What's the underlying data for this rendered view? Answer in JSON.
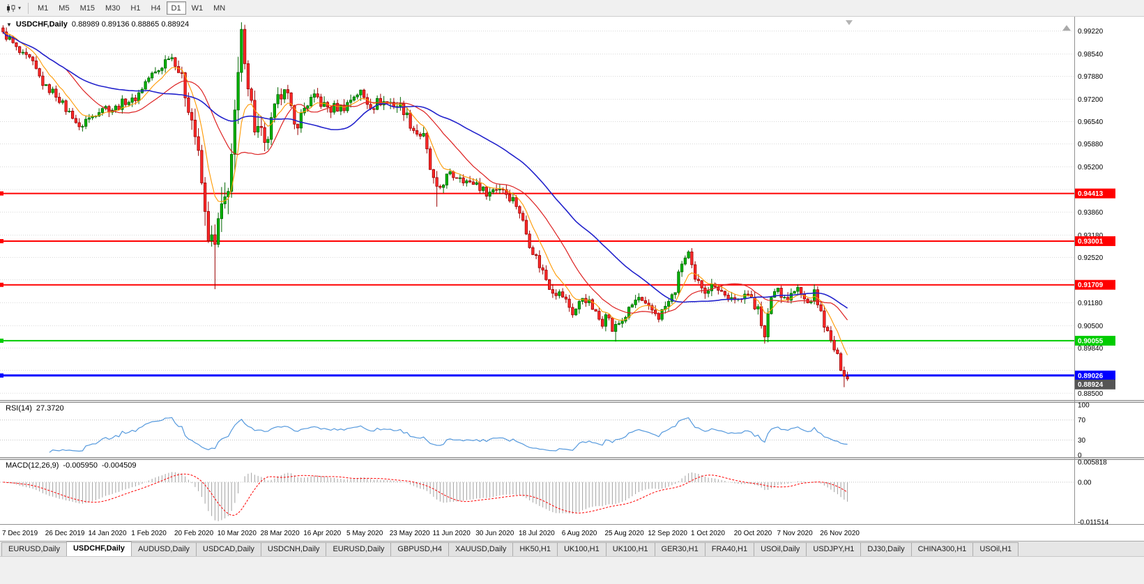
{
  "toolbar": {
    "timeframes": [
      "M1",
      "M5",
      "M15",
      "M30",
      "H1",
      "H4",
      "D1",
      "W1",
      "MN"
    ],
    "active_timeframe": "D1"
  },
  "chart": {
    "title_symbol": "USDCHF,Daily",
    "title_ohlc": "0.88989 0.89136 0.88865 0.88924"
  },
  "tabs": {
    "active_index": 1,
    "items": [
      "EURUSD,Daily",
      "USDCHF,Daily",
      "AUDUSD,Daily",
      "USDCAD,Daily",
      "USDCNH,Daily",
      "EURUSD,Daily",
      "GBPUSD,H4",
      "XAUUSD,Daily",
      "HK50,H1",
      "UK100,H1",
      "UK100,H1",
      "GER30,H1",
      "FRA40,H1",
      "USOil,Daily",
      "USDJPY,H1",
      "DJ30,Daily",
      "CHINA300,H1",
      "USOil,H1"
    ],
    "active_label": "USDCHF,Daily"
  },
  "chart_data": {
    "type": "candlestick",
    "symbol": "USDCHF",
    "timeframe": "Daily",
    "bars_total": 256,
    "y_range": [
      0.883,
      0.9956
    ],
    "y_grid_levels": [
      0.9922,
      0.9854,
      0.9788,
      0.972,
      0.9654,
      0.9588,
      0.952,
      0.9453,
      0.9386,
      0.9318,
      0.9252,
      0.9186,
      0.9118,
      0.905,
      0.8984,
      0.8918,
      0.885
    ],
    "y_grid_hidden_labels": [
      0.9453,
      0.9186,
      0.8918
    ],
    "x_tick_labels": [
      "7 Dec 2019",
      "26 Dec 2019",
      "14 Jan 2020",
      "1 Feb 2020",
      "20 Feb 2020",
      "10 Mar 2020",
      "28 Mar 2020",
      "16 Apr 2020",
      "5 May 2020",
      "23 May 2020",
      "11 Jun 2020",
      "30 Jun 2020",
      "18 Jul 2020",
      "6 Aug 2020",
      "25 Aug 2020",
      "12 Sep 2020",
      "1 Oct 2020",
      "20 Oct 2020",
      "7 Nov 2020",
      "26 Nov 2020"
    ],
    "x_tick_interval_bars": 13,
    "last_bar": {
      "open": 0.88989,
      "high": 0.89136,
      "low": 0.88865,
      "close": 0.88924
    },
    "close_keyframes": [
      [
        0,
        0.9912
      ],
      [
        4,
        0.9872
      ],
      [
        8,
        0.9833
      ],
      [
        13,
        0.9758
      ],
      [
        18,
        0.9708
      ],
      [
        21,
        0.9672
      ],
      [
        23,
        0.9625
      ],
      [
        25,
        0.9663
      ],
      [
        30,
        0.9692
      ],
      [
        35,
        0.97
      ],
      [
        39,
        0.9718
      ],
      [
        45,
        0.979
      ],
      [
        50,
        0.9845
      ],
      [
        52,
        0.983
      ],
      [
        54,
        0.979
      ],
      [
        56,
        0.97
      ],
      [
        58,
        0.96
      ],
      [
        60,
        0.948
      ],
      [
        61,
        0.939
      ],
      [
        63,
        0.929
      ],
      [
        64,
        0.926
      ],
      [
        65,
        0.933
      ],
      [
        66,
        0.937
      ],
      [
        67,
        0.943
      ],
      [
        68,
        0.95
      ],
      [
        69,
        0.957
      ],
      [
        70,
        0.965
      ],
      [
        71,
        0.976
      ],
      [
        72,
        0.9872
      ],
      [
        73,
        0.986
      ],
      [
        74,
        0.979
      ],
      [
        76,
        0.965
      ],
      [
        78,
        0.96
      ],
      [
        79,
        0.956
      ],
      [
        82,
        0.97
      ],
      [
        85,
        0.9758
      ],
      [
        88,
        0.9645
      ],
      [
        91,
        0.9692
      ],
      [
        95,
        0.9728
      ],
      [
        99,
        0.9683
      ],
      [
        104,
        0.9712
      ],
      [
        108,
        0.9738
      ],
      [
        112,
        0.97
      ],
      [
        117,
        0.9718
      ],
      [
        121,
        0.9682
      ],
      [
        125,
        0.9625
      ],
      [
        127,
        0.96
      ],
      [
        129,
        0.9512
      ],
      [
        131,
        0.9455
      ],
      [
        134,
        0.9483
      ],
      [
        138,
        0.9502
      ],
      [
        141,
        0.9462
      ],
      [
        143,
        0.9472
      ],
      [
        147,
        0.9442
      ],
      [
        151,
        0.9462
      ],
      [
        154,
        0.9422
      ],
      [
        156,
        0.9382
      ],
      [
        159,
        0.9302
      ],
      [
        162,
        0.9222
      ],
      [
        165,
        0.9172
      ],
      [
        169,
        0.9132
      ],
      [
        172,
        0.9092
      ],
      [
        175,
        0.9132
      ],
      [
        178,
        0.9102
      ],
      [
        181,
        0.9062
      ],
      [
        182,
        0.9092
      ],
      [
        184,
        0.9032
      ],
      [
        186,
        0.9062
      ],
      [
        189,
        0.9092
      ],
      [
        192,
        0.9132
      ],
      [
        195,
        0.9102
      ],
      [
        198,
        0.9072
      ],
      [
        200,
        0.9112
      ],
      [
        203,
        0.9152
      ],
      [
        205,
        0.9232
      ],
      [
        207,
        0.9268
      ],
      [
        209,
        0.9182
      ],
      [
        212,
        0.9152
      ],
      [
        215,
        0.9182
      ],
      [
        218,
        0.9132
      ],
      [
        221,
        0.9122
      ],
      [
        224,
        0.9152
      ],
      [
        227,
        0.9102
      ],
      [
        228,
        0.9122
      ],
      [
        230,
        0.9012
      ],
      [
        232,
        0.9132
      ],
      [
        234,
        0.9162
      ],
      [
        237,
        0.9132
      ],
      [
        240,
        0.9152
      ],
      [
        243,
        0.9122
      ],
      [
        245,
        0.9142
      ],
      [
        247,
        0.9082
      ],
      [
        249,
        0.9032
      ],
      [
        251,
        0.8982
      ],
      [
        253,
        0.8922
      ],
      [
        255,
        0.8892
      ]
    ],
    "volatility_keyframes": [
      [
        0,
        0.0028
      ],
      [
        50,
        0.003
      ],
      [
        56,
        0.006
      ],
      [
        60,
        0.0085
      ],
      [
        64,
        0.0105
      ],
      [
        72,
        0.011
      ],
      [
        76,
        0.0085
      ],
      [
        80,
        0.006
      ],
      [
        88,
        0.0045
      ],
      [
        100,
        0.0038
      ],
      [
        130,
        0.004
      ],
      [
        140,
        0.0032
      ],
      [
        160,
        0.0036
      ],
      [
        170,
        0.003
      ],
      [
        205,
        0.0032
      ],
      [
        230,
        0.0035
      ],
      [
        255,
        0.003
      ]
    ],
    "wick_overrides": [
      [
        0,
        "high",
        0.992
      ],
      [
        64,
        "low",
        0.9158
      ],
      [
        72,
        "high",
        0.9921
      ],
      [
        131,
        "low",
        0.9402
      ],
      [
        185,
        "low",
        0.9003
      ],
      [
        230,
        "low",
        0.8997
      ],
      [
        254,
        "low",
        0.8868
      ]
    ],
    "moving_averages": [
      {
        "name": "fast",
        "type": "ema",
        "period": 8,
        "color": "#ff9900",
        "width": 1.1
      },
      {
        "name": "medium",
        "type": "sma",
        "period": 20,
        "color": "#dd2222",
        "width": 1.2
      },
      {
        "name": "slow",
        "type": "sma",
        "period": 45,
        "color": "#2222cc",
        "width": 1.6
      }
    ],
    "hlines": [
      {
        "price": 0.94413,
        "label": "0.94413",
        "color": "#ff0000",
        "width": 2
      },
      {
        "price": 0.93001,
        "label": "0.93001",
        "color": "#ff0000",
        "width": 2
      },
      {
        "price": 0.91709,
        "label": "0.91709",
        "color": "#ff0000",
        "width": 2
      },
      {
        "price": 0.90055,
        "label": "0.90055",
        "color": "#00cc00",
        "width": 2
      },
      {
        "price": 0.89026,
        "label": "0.89026",
        "color": "#0000ff",
        "width": 3
      }
    ],
    "current_price_badge": {
      "price": 0.88924,
      "label": "0.88924",
      "color": "#555555"
    },
    "candle_up": {
      "fill": "#00b400",
      "stroke": "#006600"
    },
    "candle_down": {
      "fill": "#ff2a2a",
      "stroke": "#990000"
    },
    "grid_color": "#d8d8d8",
    "rsi": {
      "label": "RSI(14)",
      "value": "27.3720",
      "period": 14,
      "levels": [
        70,
        30
      ],
      "axis_labels": [
        100,
        70,
        30,
        0
      ],
      "color": "#5599dd",
      "range": [
        0,
        100
      ]
    },
    "macd": {
      "label": "MACD(12,26,9)",
      "main": "-0.005950",
      "signal": "-0.004509",
      "fast": 12,
      "slow": 26,
      "signal_period": 9,
      "axis_labels": [
        {
          "text": "0.005818",
          "value": 0.005818
        },
        {
          "text": "0.00",
          "value": 0
        },
        {
          "text": "-0.011514",
          "value": -0.011514
        }
      ],
      "range": [
        -0.011514,
        0.005818
      ],
      "hist_color": "#a0a0a0",
      "signal_color": "#ff0000"
    }
  }
}
